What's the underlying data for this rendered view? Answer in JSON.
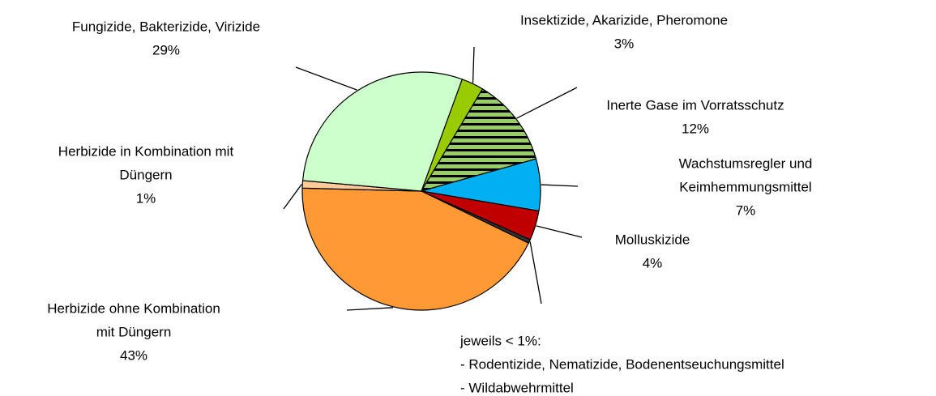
{
  "chart_data": {
    "type": "pie",
    "start_angle": 20,
    "slices": [
      {
        "label": [
          "Insektizide, Akarizide, Pheromone"
        ],
        "value": 3,
        "value_label": "3%",
        "color": "#99cc00"
      },
      {
        "label": [
          "Inerte Gase im Vorratsschutz"
        ],
        "value": 12,
        "value_label": "12%",
        "color": "#99cc66",
        "hatch": true
      },
      {
        "label": [
          "Wachstumsregler und",
          "Keimhemmungsmittel"
        ],
        "value": 7,
        "value_label": "7%",
        "color": "#00b0f0"
      },
      {
        "label": [
          "Molluskizide"
        ],
        "value": 4,
        "value_label": "4%",
        "color": "#c00000"
      },
      {
        "label": [
          "jeweils < 1%:",
          "- Rodentizide, Nematizide, Bodenentseuchungsmittel",
          "- Wildabwehrmittel"
        ],
        "value": 0.5,
        "color": "#333333"
      },
      {
        "label": [
          "Herbizide ohne Kombination",
          "mit Düngern"
        ],
        "value": 43,
        "value_label": "43%",
        "color": "#ff9933"
      },
      {
        "label": [
          "Herbizide in Kombination mit",
          "Düngern"
        ],
        "value": 1,
        "value_label": "1%",
        "color": "#ffcc99"
      },
      {
        "label": [
          "Fungizide, Bakterizide, Virizide"
        ],
        "value": 29,
        "value_label": "29%",
        "color": "#ccffcc"
      }
    ]
  }
}
